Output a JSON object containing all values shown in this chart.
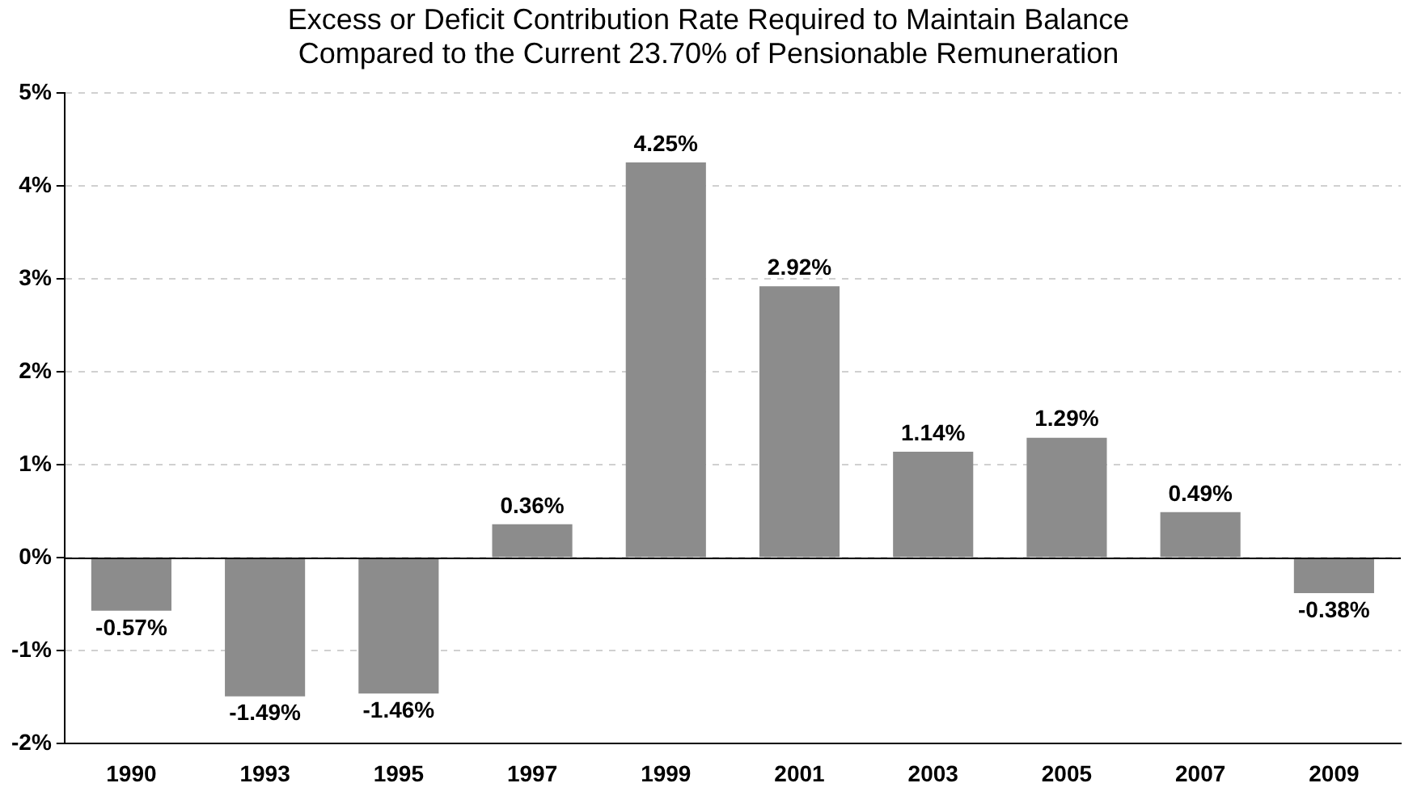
{
  "chart_data": {
    "type": "bar",
    "title": "Excess or Deficit Contribution Rate Required to Maintain Balance",
    "subtitle": "Compared to the Current 23.70% of Pensionable Remuneration",
    "categories": [
      "1990",
      "1993",
      "1995",
      "1997",
      "1999",
      "2001",
      "2003",
      "2005",
      "2007",
      "2009"
    ],
    "values": [
      -0.57,
      -1.49,
      -1.46,
      0.36,
      4.25,
      2.92,
      1.14,
      1.29,
      0.49,
      -0.38
    ],
    "value_labels": [
      "-0.57%",
      "-1.49%",
      "-1.46%",
      "0.36%",
      "4.25%",
      "2.92%",
      "1.14%",
      "1.29%",
      "0.49%",
      "-0.38%"
    ],
    "color": "#8c8c8c",
    "ylim": [
      -2,
      5
    ],
    "yticks": [
      {
        "value": -2,
        "label": "-2%"
      },
      {
        "value": -1,
        "label": "-1%"
      },
      {
        "value": 0,
        "label": "0%"
      },
      {
        "value": 1,
        "label": "1%"
      },
      {
        "value": 2,
        "label": "2%"
      },
      {
        "value": 3,
        "label": "3%"
      },
      {
        "value": 4,
        "label": "4%"
      },
      {
        "value": 5,
        "label": "5%"
      }
    ],
    "grid": "y",
    "legend": false
  }
}
